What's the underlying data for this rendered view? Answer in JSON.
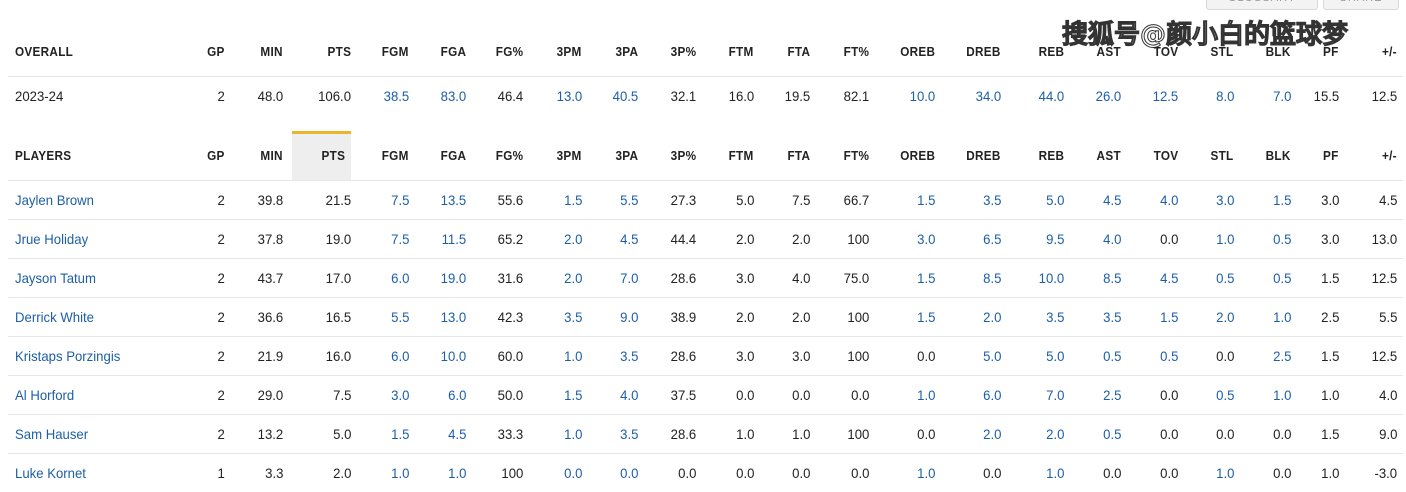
{
  "buttons": {
    "glossary": "GLOSSARY",
    "share": "SHARE"
  },
  "watermark": "搜狐号@颜小白的篮球梦",
  "overall": {
    "label": "OVERALL",
    "columns": [
      "GP",
      "MIN",
      "PTS",
      "FGM",
      "FGA",
      "FG%",
      "3PM",
      "3PA",
      "3P%",
      "FTM",
      "FTA",
      "FT%",
      "OREB",
      "DREB",
      "REB",
      "AST",
      "TOV",
      "STL",
      "BLK",
      "PF",
      "+/-"
    ],
    "row": {
      "season": "2023-24",
      "values": [
        "2",
        "48.0",
        "106.0",
        "38.5",
        "83.0",
        "46.4",
        "13.0",
        "40.5",
        "32.1",
        "16.0",
        "19.5",
        "82.1",
        "10.0",
        "34.0",
        "44.0",
        "26.0",
        "12.5",
        "8.0",
        "7.0",
        "15.5",
        "12.5"
      ]
    }
  },
  "players": {
    "label": "PLAYERS",
    "columns": [
      "GP",
      "MIN",
      "PTS",
      "FGM",
      "FGA",
      "FG%",
      "3PM",
      "3PA",
      "3P%",
      "FTM",
      "FTA",
      "FT%",
      "OREB",
      "DREB",
      "REB",
      "AST",
      "TOV",
      "STL",
      "BLK",
      "PF",
      "+/-"
    ],
    "sorted_column": "PTS",
    "link_color": "#1d5fa7",
    "highlight_color": "#e9b62c",
    "rows": [
      {
        "name": "Jaylen Brown",
        "values": [
          "2",
          "39.8",
          "21.5",
          "7.5",
          "13.5",
          "55.6",
          "1.5",
          "5.5",
          "27.3",
          "5.0",
          "7.5",
          "66.7",
          "1.5",
          "3.5",
          "5.0",
          "4.5",
          "4.0",
          "3.0",
          "1.5",
          "3.0",
          "4.5"
        ]
      },
      {
        "name": "Jrue Holiday",
        "values": [
          "2",
          "37.8",
          "19.0",
          "7.5",
          "11.5",
          "65.2",
          "2.0",
          "4.5",
          "44.4",
          "2.0",
          "2.0",
          "100",
          "3.0",
          "6.5",
          "9.5",
          "4.0",
          "0.0",
          "1.0",
          "0.5",
          "3.0",
          "13.0"
        ]
      },
      {
        "name": "Jayson Tatum",
        "values": [
          "2",
          "43.7",
          "17.0",
          "6.0",
          "19.0",
          "31.6",
          "2.0",
          "7.0",
          "28.6",
          "3.0",
          "4.0",
          "75.0",
          "1.5",
          "8.5",
          "10.0",
          "8.5",
          "4.5",
          "0.5",
          "0.5",
          "1.5",
          "12.5"
        ]
      },
      {
        "name": "Derrick White",
        "values": [
          "2",
          "36.6",
          "16.5",
          "5.5",
          "13.0",
          "42.3",
          "3.5",
          "9.0",
          "38.9",
          "2.0",
          "2.0",
          "100",
          "1.5",
          "2.0",
          "3.5",
          "3.5",
          "1.5",
          "2.0",
          "1.0",
          "2.5",
          "5.5"
        ]
      },
      {
        "name": "Kristaps Porzingis",
        "values": [
          "2",
          "21.9",
          "16.0",
          "6.0",
          "10.0",
          "60.0",
          "1.0",
          "3.5",
          "28.6",
          "3.0",
          "3.0",
          "100",
          "0.0",
          "5.0",
          "5.0",
          "0.5",
          "0.5",
          "0.0",
          "2.5",
          "1.5",
          "12.5"
        ]
      },
      {
        "name": "Al Horford",
        "values": [
          "2",
          "29.0",
          "7.5",
          "3.0",
          "6.0",
          "50.0",
          "1.5",
          "4.0",
          "37.5",
          "0.0",
          "0.0",
          "0.0",
          "1.0",
          "6.0",
          "7.0",
          "2.5",
          "0.0",
          "0.5",
          "1.0",
          "1.0",
          "4.0"
        ]
      },
      {
        "name": "Sam Hauser",
        "values": [
          "2",
          "13.2",
          "5.0",
          "1.5",
          "4.5",
          "33.3",
          "1.0",
          "3.5",
          "28.6",
          "1.0",
          "1.0",
          "100",
          "0.0",
          "2.0",
          "2.0",
          "0.5",
          "0.0",
          "0.0",
          "0.0",
          "1.5",
          "9.0"
        ]
      },
      {
        "name": "Luke Kornet",
        "values": [
          "1",
          "3.3",
          "2.0",
          "1.0",
          "1.0",
          "100",
          "0.0",
          "0.0",
          "0.0",
          "0.0",
          "0.0",
          "0.0",
          "1.0",
          "0.0",
          "1.0",
          "0.0",
          "0.0",
          "1.0",
          "0.0",
          "1.0",
          "-3.0"
        ]
      }
    ]
  }
}
